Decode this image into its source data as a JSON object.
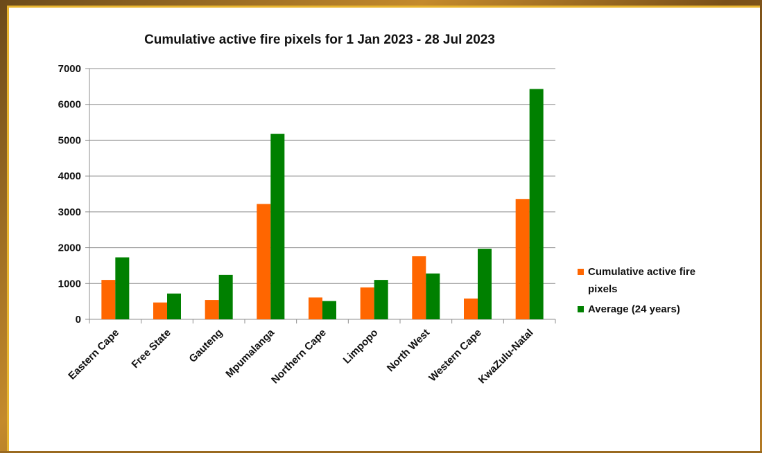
{
  "chart_data": {
    "type": "bar",
    "title": "Cumulative active fire pixels for 1 Jan 2023 - 28 Jul 2023",
    "categories": [
      "Eastern Cape",
      "Free State",
      "Gauteng",
      "Mpumalanga",
      "Northern Cape",
      "Limpopo",
      "North West",
      "Western Cape",
      "KwaZulu-Natal"
    ],
    "series": [
      {
        "name": "Cumulative active fire pixels",
        "color": "#ff6600",
        "values": [
          1100,
          470,
          540,
          3220,
          610,
          890,
          1760,
          580,
          3360
        ]
      },
      {
        "name": "Average (24 years)",
        "color": "#008000",
        "values": [
          1730,
          720,
          1240,
          5180,
          510,
          1100,
          1280,
          1970,
          6430
        ]
      }
    ],
    "ylim": [
      0,
      7000
    ],
    "yticks": [
      "0",
      "1000",
      "2000",
      "3000",
      "4000",
      "5000",
      "6000",
      "7000"
    ],
    "grid": true,
    "legend_position": "right",
    "legend": {
      "entries": [
        {
          "lines": [
            "Cumulative active fire",
            "pixels"
          ]
        },
        {
          "lines": [
            "Average (24 years)"
          ]
        }
      ]
    }
  }
}
